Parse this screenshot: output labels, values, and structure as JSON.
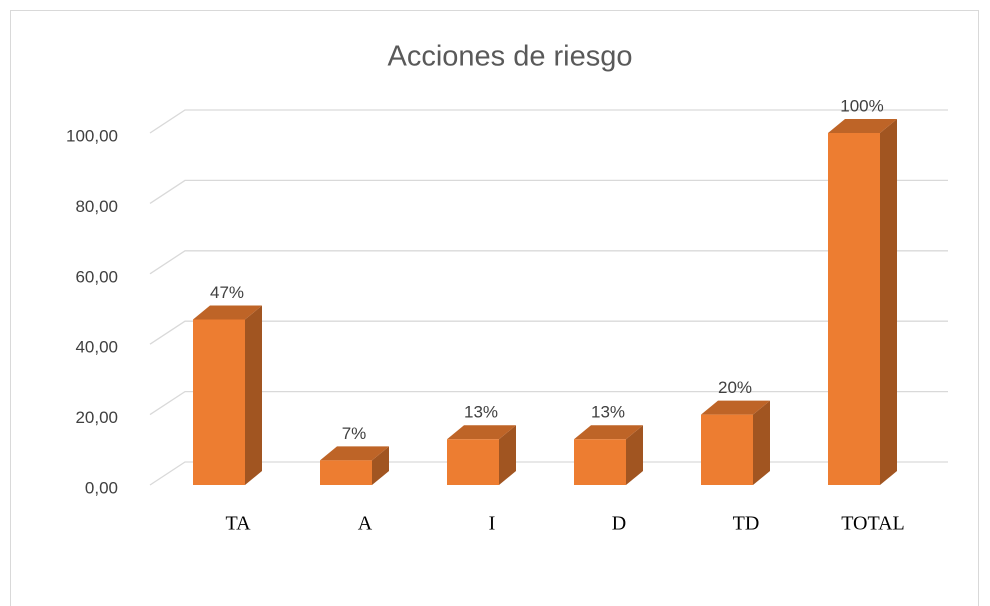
{
  "chart_data": {
    "type": "bar3d",
    "title": "Acciones de riesgo",
    "categories": [
      "TA",
      "A",
      "I",
      "D",
      "TD",
      "TOTAL"
    ],
    "values": [
      47,
      7,
      13,
      13,
      20,
      100
    ],
    "value_labels": [
      "47%",
      "7%",
      "13%",
      "13%",
      "20%",
      "100%"
    ],
    "color": "#ed7d31",
    "ylim": [
      0,
      100
    ],
    "yticks": [
      {
        "value": 0,
        "label": "0,00"
      },
      {
        "value": 20,
        "label": "20,00"
      },
      {
        "value": 40,
        "label": "40,00"
      },
      {
        "value": 60,
        "label": "60,00"
      },
      {
        "value": 80,
        "label": "80,00"
      },
      {
        "value": 100,
        "label": "100,00"
      }
    ],
    "grid": true
  }
}
